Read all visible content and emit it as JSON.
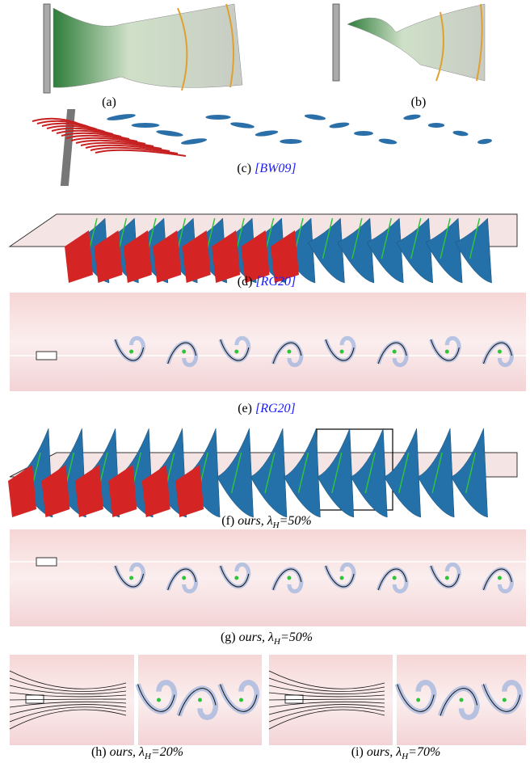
{
  "panels": [
    {
      "label": "(a)"
    },
    {
      "label": "(b)"
    },
    {
      "label": "(c)",
      "citation": "[BW09]"
    },
    {
      "label": "(d)",
      "citation": "[RG20]"
    },
    {
      "label": "(e)",
      "citation": "[RG20]"
    },
    {
      "label": "(f)",
      "method": "ours,",
      "symbol": "λ",
      "subscript": "H",
      "value": "=50%"
    },
    {
      "label": "(g)",
      "method": "ours,",
      "symbol": "λ",
      "subscript": "H",
      "value": "=50%"
    },
    {
      "label": "(h)",
      "method": "ours,",
      "symbol": "λ",
      "subscript": "H",
      "value": "=20%"
    },
    {
      "label": "(i)",
      "method": "ours,",
      "symbol": "λ",
      "subscript": "H",
      "value": "=70%"
    }
  ]
}
